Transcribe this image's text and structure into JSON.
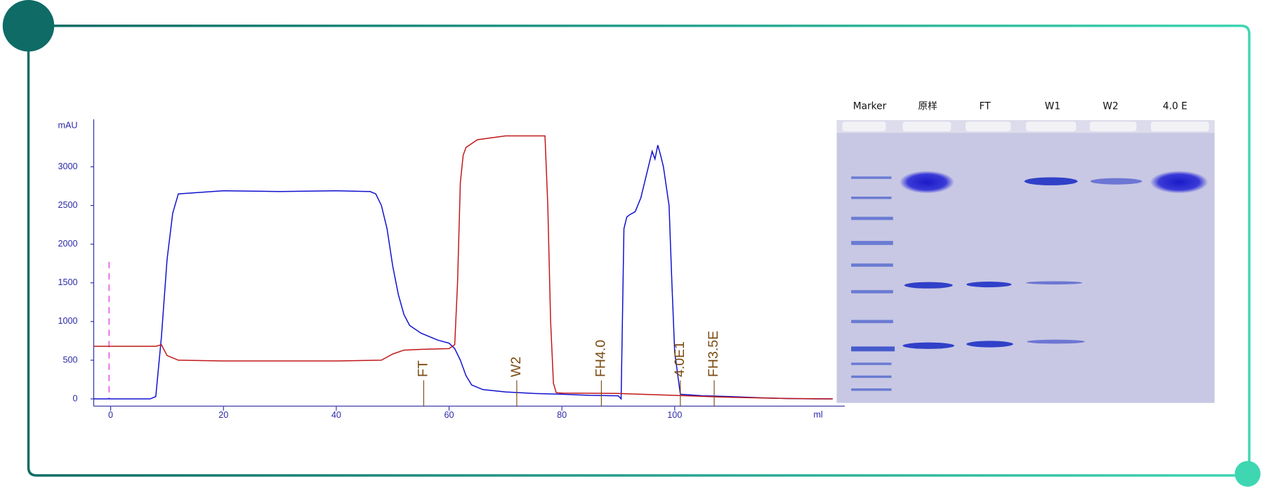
{
  "chart_data": {
    "type": "line",
    "y_label": "mAU",
    "x_label": "ml",
    "xlim": [
      -3,
      130
    ],
    "ylim": [
      -100,
      3600
    ],
    "xticks": [
      0,
      20,
      40,
      60,
      80,
      100
    ],
    "yticks": [
      0,
      500,
      1000,
      1500,
      2000,
      2500,
      3000
    ],
    "series": [
      {
        "color": "#1010d0",
        "x": [
          -3,
          0,
          7,
          8,
          9,
          10,
          11,
          12,
          20,
          30,
          40,
          46,
          47,
          48,
          49,
          50,
          51,
          52,
          53,
          55,
          58,
          60,
          61,
          62,
          63,
          64,
          66,
          70,
          75,
          80,
          85,
          90,
          90.5,
          91,
          91.5,
          92,
          93,
          94,
          95,
          96,
          96.5,
          97,
          97.5,
          98,
          99,
          99.5,
          100,
          101,
          105,
          110,
          115,
          120,
          125,
          128
        ],
        "values": [
          0,
          0,
          0,
          30,
          800,
          1800,
          2400,
          2650,
          2690,
          2680,
          2690,
          2680,
          2650,
          2500,
          2200,
          1720,
          1350,
          1090,
          950,
          850,
          760,
          720,
          650,
          500,
          300,
          180,
          120,
          90,
          70,
          60,
          45,
          40,
          0,
          2200,
          2350,
          2380,
          2420,
          2600,
          2900,
          3200,
          3100,
          3280,
          3150,
          3000,
          2500,
          1500,
          600,
          60,
          40,
          30,
          15,
          5,
          0,
          0
        ]
      },
      {
        "color": "#c01818",
        "x": [
          -3,
          8,
          9,
          10,
          12,
          20,
          40,
          48,
          50,
          52,
          55,
          60,
          61,
          61.5,
          62,
          62.5,
          63,
          65,
          70,
          76,
          77,
          77.5,
          78,
          78.5,
          79,
          80,
          90,
          100,
          110,
          120,
          128
        ],
        "values": [
          680,
          680,
          700,
          560,
          500,
          490,
          490,
          500,
          580,
          630,
          640,
          650,
          700,
          1500,
          2800,
          3150,
          3250,
          3350,
          3400,
          3400,
          3400,
          2500,
          1000,
          200,
          80,
          75,
          70,
          45,
          20,
          5,
          0
        ]
      }
    ],
    "annotations": [
      {
        "label": "FT",
        "x": 55.5
      },
      {
        "label": "W2",
        "x": 72
      },
      {
        "label": "FH4.0",
        "x": 87
      },
      {
        "label": "4.0E1",
        "x": 101
      },
      {
        "label": "FH3.5E",
        "x": 107
      }
    ]
  },
  "gel": {
    "lanes": [
      "Marker",
      "原样",
      "FT",
      "W1",
      "W2",
      "4.0 E"
    ]
  }
}
